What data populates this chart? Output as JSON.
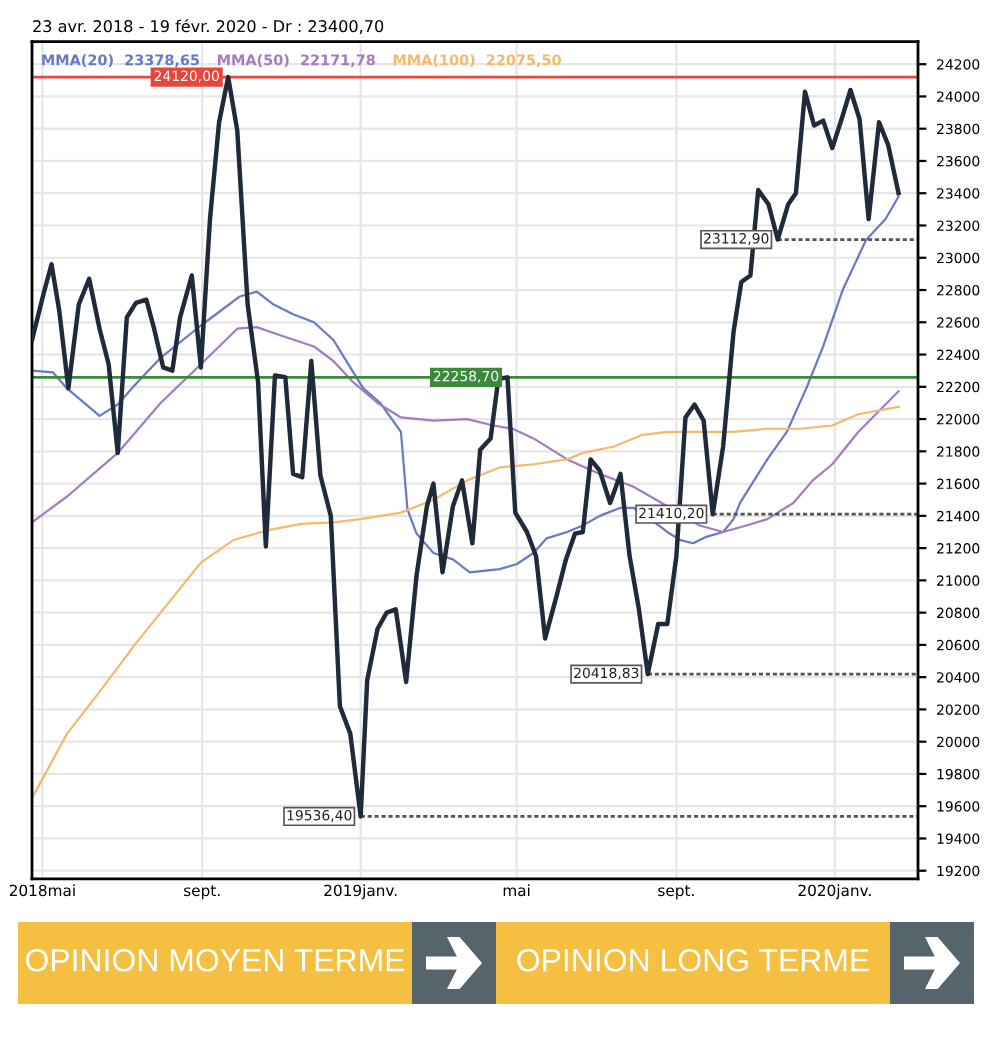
{
  "chart_data": {
    "type": "line",
    "title": "23 avr. 2018 - 19 févr. 2020 - Dr : 23400,70",
    "x": [
      "2018-04-23",
      "2018-05-02",
      "2018-05-08",
      "2018-05-14",
      "2018-05-21",
      "2018-05-29",
      "2018-06-06",
      "2018-06-14",
      "2018-06-21",
      "2018-06-28",
      "2018-07-05",
      "2018-07-12",
      "2018-07-20",
      "2018-07-26",
      "2018-08-02",
      "2018-08-09",
      "2018-08-15",
      "2018-08-24",
      "2018-08-31",
      "2018-09-07",
      "2018-09-14",
      "2018-09-21",
      "2018-09-28",
      "2018-10-06",
      "2018-10-14",
      "2018-10-20",
      "2018-10-27",
      "2018-11-04",
      "2018-11-10",
      "2018-11-17",
      "2018-11-24",
      "2018-12-01",
      "2018-12-09",
      "2018-12-16",
      "2018-12-24",
      "2019-01-01",
      "2019-01-06",
      "2019-01-14",
      "2019-01-21",
      "2019-01-28",
      "2019-02-05",
      "2019-02-13",
      "2019-02-21",
      "2019-02-26",
      "2019-03-05",
      "2019-03-13",
      "2019-03-20",
      "2019-03-28",
      "2019-04-03",
      "2019-04-11",
      "2019-04-17",
      "2019-04-24",
      "2019-04-30",
      "2019-05-09",
      "2019-05-16",
      "2019-05-23",
      "2019-06-01",
      "2019-06-08",
      "2019-06-15",
      "2019-06-21",
      "2019-06-27",
      "2019-07-04",
      "2019-07-12",
      "2019-07-20",
      "2019-07-27",
      "2019-08-03",
      "2019-08-10",
      "2019-08-18",
      "2019-08-25",
      "2019-09-01",
      "2019-09-08",
      "2019-09-15",
      "2019-09-22",
      "2019-09-29",
      "2019-10-07",
      "2019-10-15",
      "2019-10-21",
      "2019-10-28",
      "2019-11-03",
      "2019-11-11",
      "2019-11-18",
      "2019-11-26",
      "2019-12-02",
      "2019-12-09",
      "2019-12-16",
      "2019-12-23",
      "2019-12-30",
      "2020-01-07",
      "2020-01-13",
      "2020-01-20",
      "2020-01-27",
      "2020-02-04",
      "2020-02-11",
      "2020-02-19"
    ],
    "series": [
      {
        "color": "#1f2a3a",
        "values": [
          22490,
          22780,
          22960,
          22670,
          22190,
          22710,
          22870,
          22560,
          22340,
          21790,
          22630,
          22720,
          22740,
          22560,
          22320,
          22300,
          22630,
          22890,
          22320,
          23240,
          23840,
          24120,
          23790,
          22710,
          22230,
          21210,
          22270,
          22260,
          21660,
          21640,
          22360,
          21650,
          21400,
          20220,
          20050,
          19536.4,
          20380,
          20700,
          20800,
          20820,
          20370,
          21030,
          21460,
          21600,
          21050,
          21460,
          21620,
          21230,
          21810,
          21880,
          22250,
          22258.7,
          21420,
          21300,
          21150,
          20640,
          20910,
          21130,
          21290,
          21300,
          21750,
          21680,
          21480,
          21660,
          21150,
          20830,
          20418.83,
          20730,
          20730,
          21150,
          22010,
          22090,
          21990,
          21410.2,
          21830,
          22540,
          22850,
          22890,
          23420,
          23330,
          23112.9,
          23330,
          23400,
          24030,
          23820,
          23850,
          23680,
          23880,
          24040,
          23860,
          23240,
          23840,
          23700,
          23400.7
        ]
      },
      {
        "name": "MMA(20)  23378,65",
        "color": "#6a78c8",
        "x": [
          "2018-04-23",
          "2018-05-09",
          "2018-05-20",
          "2018-06-14",
          "2018-06-28",
          "2018-07-11",
          "2018-07-31",
          "2018-08-31",
          "2018-09-15",
          "2018-09-30",
          "2018-10-13",
          "2018-10-26",
          "2018-11-10",
          "2018-11-26",
          "2018-12-11",
          "2018-12-24",
          "2019-01-03",
          "2019-01-16",
          "2019-02-01",
          "2019-02-06",
          "2019-02-13",
          "2019-02-26",
          "2019-03-13",
          "2019-03-26",
          "2019-04-18",
          "2019-05-01",
          "2019-05-14",
          "2019-05-24",
          "2019-06-09",
          "2019-06-21",
          "2019-07-04",
          "2019-07-20",
          "2019-07-30",
          "2019-08-12",
          "2019-08-25",
          "2019-09-04",
          "2019-09-14",
          "2019-09-24",
          "2019-10-07",
          "2019-10-15",
          "2019-10-20",
          "2019-11-10",
          "2019-11-25",
          "2019-12-10",
          "2019-12-23",
          "2020-01-07",
          "2020-01-25",
          "2020-02-09",
          "2020-02-19"
        ],
        "values": [
          22300,
          22290,
          22190,
          22020,
          22090,
          22210,
          22380,
          22580,
          22670,
          22760,
          22790,
          22710,
          22650,
          22600,
          22490,
          22320,
          22190,
          22100,
          21920,
          21440,
          21290,
          21170,
          21130,
          21050,
          21070,
          21100,
          21170,
          21260,
          21300,
          21340,
          21400,
          21450,
          21450,
          21380,
          21300,
          21250,
          21230,
          21270,
          21300,
          21380,
          21480,
          21750,
          21920,
          22190,
          22450,
          22800,
          23110,
          23240,
          23378.65
        ]
      },
      {
        "name": "MMA(50)  22171,78",
        "color": "#a57bc0",
        "x": [
          "2018-04-23",
          "2018-05-20",
          "2018-06-28",
          "2018-07-31",
          "2018-08-31",
          "2018-09-28",
          "2018-10-13",
          "2018-10-31",
          "2018-11-26",
          "2018-12-11",
          "2018-12-26",
          "2019-01-14",
          "2019-02-01",
          "2019-02-26",
          "2019-03-24",
          "2019-04-13",
          "2019-04-28",
          "2019-05-14",
          "2019-06-09",
          "2019-07-04",
          "2019-07-30",
          "2019-08-25",
          "2019-09-19",
          "2019-10-07",
          "2019-10-25",
          "2019-11-10",
          "2019-11-30",
          "2019-12-15",
          "2019-12-30",
          "2020-01-19",
          "2020-02-04",
          "2020-02-19"
        ],
        "values": [
          21360,
          21520,
          21790,
          22100,
          22340,
          22560,
          22570,
          22520,
          22450,
          22360,
          22230,
          22100,
          22010,
          21990,
          22000,
          21960,
          21940,
          21880,
          21750,
          21660,
          21580,
          21460,
          21340,
          21300,
          21340,
          21380,
          21480,
          21620,
          21720,
          21920,
          22050,
          22171.78
        ]
      },
      {
        "name": "MMA(100)  22075,50",
        "color": "#f5b96a",
        "x": [
          "2018-04-23",
          "2018-05-20",
          "2018-06-15",
          "2018-07-11",
          "2018-08-05",
          "2018-08-31",
          "2018-09-25",
          "2018-10-21",
          "2018-11-16",
          "2018-12-11",
          "2019-01-01",
          "2019-02-01",
          "2019-02-26",
          "2019-03-24",
          "2019-04-18",
          "2019-05-14",
          "2019-06-09",
          "2019-06-21",
          "2019-07-15",
          "2019-08-05",
          "2019-08-25",
          "2019-09-19",
          "2019-10-15",
          "2019-11-10",
          "2019-12-05",
          "2019-12-30",
          "2020-01-19",
          "2020-02-19"
        ],
        "values": [
          19650,
          20050,
          20320,
          20600,
          20850,
          21110,
          21250,
          21310,
          21350,
          21360,
          21380,
          21420,
          21500,
          21620,
          21700,
          21720,
          21750,
          21790,
          21830,
          21900,
          21920,
          21920,
          21920,
          21940,
          21940,
          21960,
          22030,
          22075.5
        ]
      }
    ],
    "xlim": [
      "2018-04-23",
      "2020-03-05"
    ],
    "xticks": [
      {
        "value": "2018-05-01",
        "label": "2018mai"
      },
      {
        "value": "2018-09-01",
        "label": "sept."
      },
      {
        "value": "2019-01-01",
        "label": "2019janv."
      },
      {
        "value": "2019-05-01",
        "label": "mai"
      },
      {
        "value": "2019-09-01",
        "label": "sept."
      },
      {
        "value": "2020-01-01",
        "label": "2020janv."
      }
    ],
    "ylim": [
      19150,
      24340
    ],
    "yticks": [
      19200,
      19400,
      19600,
      19800,
      20000,
      20200,
      20400,
      20600,
      20800,
      21000,
      21200,
      21400,
      21600,
      21800,
      22000,
      22200,
      22400,
      22600,
      22800,
      23000,
      23200,
      23400,
      23600,
      23800,
      24000,
      24200
    ],
    "ref_lines": [
      {
        "axis": "y",
        "value": 24120,
        "label": "24120,00",
        "color": "#e8463a",
        "line_style": "solid"
      },
      {
        "axis": "y",
        "value": 22258.7,
        "label": "22258,70",
        "color": "#3a8a3a",
        "line_style": "solid"
      },
      {
        "axis": "y",
        "value": 23112.9,
        "label": "23112,90",
        "color": "#555555",
        "line_style": "dotted"
      },
      {
        "axis": "y",
        "value": 21410.2,
        "label": "21410,20",
        "color": "#555555",
        "line_style": "dotted"
      },
      {
        "axis": "y",
        "value": 20418.83,
        "label": "20418,83",
        "color": "#555555",
        "line_style": "dotted"
      },
      {
        "axis": "y",
        "value": 19536.4,
        "label": "19536,40",
        "color": "#555555",
        "line_style": "dotted"
      }
    ],
    "annotations": [
      "OPINION MOYEN TERME",
      "OPINION LONG TERME"
    ],
    "grid": true,
    "legend": "top left",
    "line_style": "solid",
    "marker": "none"
  }
}
